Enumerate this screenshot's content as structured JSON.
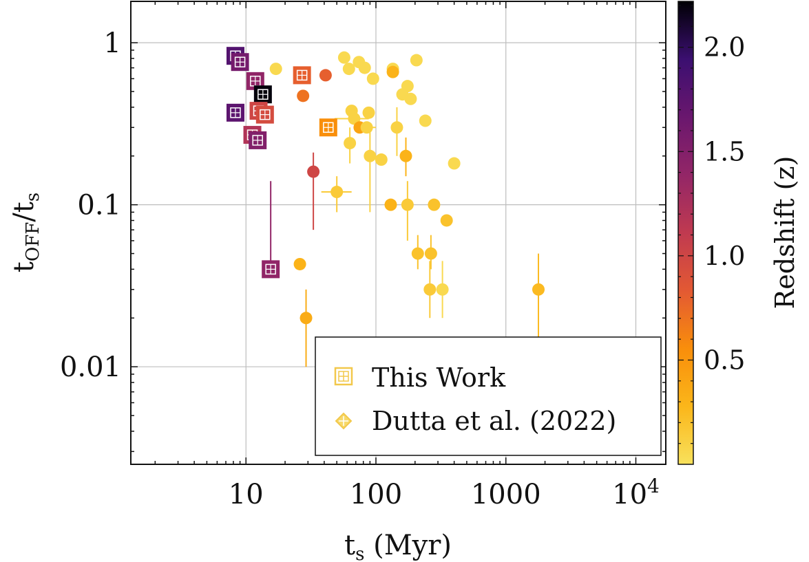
{
  "chart_data": {
    "type": "scatter",
    "title": "",
    "xlabel": "t",
    "xlabel_sub": "s",
    "xlabel_suffix": " (Myr)",
    "ylabel": "t",
    "ylabel_sub": "OFF",
    "ylabel_mid": "/t",
    "ylabel_sub2": "s",
    "x_scale": "log",
    "y_scale": "log",
    "xlim": [
      1.3,
      17000
    ],
    "ylim": [
      0.0025,
      1.8
    ],
    "x_ticks": [
      {
        "value": 10,
        "label": "10"
      },
      {
        "value": 100,
        "label": "100"
      },
      {
        "value": 1000,
        "label": "1000"
      },
      {
        "value": 10000,
        "label": "10",
        "sup": "4"
      }
    ],
    "y_ticks": [
      {
        "value": 0.01,
        "label": "0.01"
      },
      {
        "value": 0.1,
        "label": "0.1"
      },
      {
        "value": 1,
        "label": "1"
      }
    ],
    "grid": true,
    "legend_position": "bottom-right",
    "legend": [
      {
        "label": "This Work",
        "marker": "square-plus",
        "color": "#f2c84b"
      },
      {
        "label": "Dutta et al. (2022)",
        "marker": "diamond-plus",
        "color": "#f2c84b"
      }
    ],
    "colorbar": {
      "label": "Redshift (z)",
      "range": [
        0.0,
        2.22
      ],
      "ticks": [
        {
          "value": 0.5,
          "label": "0.5"
        },
        {
          "value": 1.0,
          "label": "1.0"
        },
        {
          "value": 1.5,
          "label": "1.5"
        },
        {
          "value": 2.0,
          "label": "2.0"
        }
      ],
      "colormap": "inferno_r",
      "stops": [
        "#f8e15c",
        "#fbb61a",
        "#f98e0b",
        "#e35933",
        "#c03a50",
        "#932667",
        "#6a176e",
        "#3b0f70",
        "#000004"
      ]
    },
    "series": [
      {
        "name": "This Work",
        "marker": "square",
        "points": [
          {
            "x": 8.3,
            "y": 0.83,
            "z": 1.8
          },
          {
            "x": 9.0,
            "y": 0.76,
            "z": 1.6
          },
          {
            "x": 8.3,
            "y": 0.37,
            "z": 1.75
          },
          {
            "x": 11.8,
            "y": 0.58,
            "z": 1.4
          },
          {
            "x": 13.5,
            "y": 0.48,
            "z": 2.2
          },
          {
            "x": 12.5,
            "y": 0.38,
            "z": 1.0
          },
          {
            "x": 14.0,
            "y": 0.36,
            "z": 0.95
          },
          {
            "x": 11.2,
            "y": 0.27,
            "z": 1.2
          },
          {
            "x": 12.3,
            "y": 0.25,
            "z": 1.5
          },
          {
            "x": 15.5,
            "y": 0.04,
            "z": 1.4,
            "ylo": 0.04,
            "yhi": 0.14
          },
          {
            "x": 27.0,
            "y": 0.63,
            "z": 0.8
          },
          {
            "x": 43.0,
            "y": 0.3,
            "z": 0.55
          }
        ]
      },
      {
        "name": "Dutta et al. (2022)",
        "marker": "circle",
        "points": [
          {
            "x": 17.0,
            "y": 0.69,
            "z": 0.05
          },
          {
            "x": 27.5,
            "y": 0.47,
            "z": 0.7
          },
          {
            "x": 41.0,
            "y": 0.63,
            "z": 0.8
          },
          {
            "x": 33.0,
            "y": 0.16,
            "z": 1.0,
            "ylo": 0.07,
            "yhi": 0.21
          },
          {
            "x": 26.0,
            "y": 0.043,
            "z": 0.3
          },
          {
            "x": 29.0,
            "y": 0.02,
            "z": 0.35,
            "ylo": 0.01,
            "yhi": 0.03
          },
          {
            "x": 50.0,
            "y": 0.12,
            "z": 0.15,
            "xlo": 38,
            "xhi": 65,
            "ylo": 0.09,
            "yhi": 0.15
          },
          {
            "x": 57.0,
            "y": 0.81,
            "z": 0.05
          },
          {
            "x": 62.0,
            "y": 0.69,
            "z": 0.05
          },
          {
            "x": 74.0,
            "y": 0.76,
            "z": 0.05
          },
          {
            "x": 82.0,
            "y": 0.7,
            "z": 0.05
          },
          {
            "x": 95.0,
            "y": 0.6,
            "z": 0.05
          },
          {
            "x": 65.0,
            "y": 0.38,
            "z": 0.1
          },
          {
            "x": 68.0,
            "y": 0.34,
            "z": 0.1,
            "xlo": 48,
            "xhi": 88
          },
          {
            "x": 75.0,
            "y": 0.3,
            "z": 0.4
          },
          {
            "x": 85.0,
            "y": 0.3,
            "z": 0.1,
            "xlo": 70,
            "xhi": 100
          },
          {
            "x": 88.0,
            "y": 0.37,
            "z": 0.1
          },
          {
            "x": 63.0,
            "y": 0.24,
            "z": 0.1,
            "ylo": 0.18,
            "yhi": 0.3
          },
          {
            "x": 90.0,
            "y": 0.2,
            "z": 0.1,
            "ylo": 0.09,
            "yhi": 0.3
          },
          {
            "x": 110.0,
            "y": 0.19,
            "z": 0.1
          },
          {
            "x": 135.0,
            "y": 0.69,
            "z": 0.05
          },
          {
            "x": 135.0,
            "y": 0.66,
            "z": 0.3
          },
          {
            "x": 145.0,
            "y": 0.3,
            "z": 0.1,
            "ylo": 0.2,
            "yhi": 0.4
          },
          {
            "x": 160.0,
            "y": 0.48,
            "z": 0.05
          },
          {
            "x": 175.0,
            "y": 0.54,
            "z": 0.05
          },
          {
            "x": 185.0,
            "y": 0.45,
            "z": 0.05
          },
          {
            "x": 205.0,
            "y": 0.78,
            "z": 0.05
          },
          {
            "x": 240.0,
            "y": 0.33,
            "z": 0.05
          },
          {
            "x": 170.0,
            "y": 0.2,
            "z": 0.3,
            "ylo": 0.15,
            "yhi": 0.26
          },
          {
            "x": 130.0,
            "y": 0.1,
            "z": 0.3
          },
          {
            "x": 175.0,
            "y": 0.1,
            "z": 0.15,
            "ylo": 0.06,
            "yhi": 0.14
          },
          {
            "x": 280.0,
            "y": 0.1,
            "z": 0.2
          },
          {
            "x": 350.0,
            "y": 0.08,
            "z": 0.2
          },
          {
            "x": 400.0,
            "y": 0.18,
            "z": 0.05
          },
          {
            "x": 210.0,
            "y": 0.05,
            "z": 0.2,
            "ylo": 0.04,
            "yhi": 0.065
          },
          {
            "x": 265.0,
            "y": 0.05,
            "z": 0.2,
            "ylo": 0.04,
            "yhi": 0.065
          },
          {
            "x": 260.0,
            "y": 0.03,
            "z": 0.15,
            "ylo": 0.02,
            "yhi": 0.045
          },
          {
            "x": 325.0,
            "y": 0.03,
            "z": 0.05,
            "ylo": 0.02,
            "yhi": 0.045
          },
          {
            "x": 1780.0,
            "y": 0.03,
            "z": 0.25,
            "ylo": 0.015,
            "yhi": 0.05
          }
        ]
      }
    ]
  }
}
